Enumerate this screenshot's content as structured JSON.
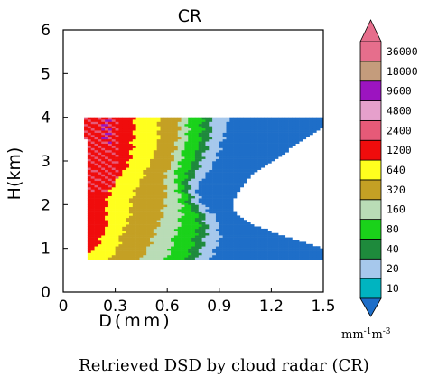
{
  "chart_data": {
    "type": "heatmap",
    "title": "CR",
    "xlabel": "D(mm)",
    "ylabel": "H(km)",
    "xlim": [
      0,
      1.5
    ],
    "ylim": [
      0,
      6
    ],
    "xticks": [
      "0",
      "0.3",
      "0.6",
      "0.9",
      "1.2",
      "1.5"
    ],
    "yticks": [
      "0",
      "1",
      "2",
      "3",
      "4",
      "5",
      "6"
    ],
    "colorbar": {
      "levels": [
        "10",
        "20",
        "40",
        "80",
        "160",
        "320",
        "640",
        "1200",
        "2400",
        "4800",
        "9600",
        "18000",
        "36000"
      ],
      "colors": [
        "#00b4c0",
        "#a6c8ec",
        "#1e8a3c",
        "#1ad21a",
        "#b9dcb6",
        "#c4a024",
        "#ffff1e",
        "#f00c0c",
        "#e65a78",
        "#e6a0cc",
        "#9c14c0",
        "#c49c7c",
        "#e66e8c"
      ],
      "unit_base": "mm",
      "unit_exp1": "-1",
      "unit_mid": "m",
      "unit_exp2": "-3"
    },
    "profile": {
      "h": [
        0.75,
        1.0,
        1.25,
        1.5,
        1.75,
        2.0,
        2.25,
        2.5,
        2.75,
        3.0,
        3.25,
        3.5,
        3.75,
        4.0
      ],
      "d_min": [
        0.15,
        0.15,
        0.15,
        0.15,
        0.15,
        0.14,
        0.14,
        0.14,
        0.14,
        0.14,
        0.14,
        0.13,
        0.13,
        0.13
      ],
      "d_max": [
        1.5,
        1.5,
        1.3,
        1.12,
        1.0,
        0.98,
        1.0,
        1.05,
        1.1,
        1.22,
        1.3,
        1.38,
        1.5,
        1.5
      ],
      "bins": {
        "red": [
          0.0,
          0.2,
          0.22,
          0.25,
          0.25,
          0.25,
          0.27,
          0.3,
          0.34,
          0.38,
          0.4,
          0.4,
          0.42,
          0.4
        ],
        "yellow": [
          0.27,
          0.31,
          0.33,
          0.36,
          0.38,
          0.39,
          0.41,
          0.44,
          0.47,
          0.51,
          0.53,
          0.55,
          0.55,
          0.55
        ],
        "tan": [
          0.45,
          0.49,
          0.51,
          0.54,
          0.57,
          0.58,
          0.6,
          0.58,
          0.6,
          0.63,
          0.64,
          0.66,
          0.67,
          0.67
        ],
        "pale": [
          0.59,
          0.62,
          0.64,
          0.67,
          0.68,
          0.68,
          0.66,
          0.65,
          0.65,
          0.68,
          0.69,
          0.71,
          0.72,
          0.72
        ],
        "lgreen": [
          0.7,
          0.74,
          0.76,
          0.78,
          0.77,
          0.73,
          0.7,
          0.69,
          0.72,
          0.75,
          0.77,
          0.79,
          0.8,
          0.8
        ],
        "dgreen": [
          0.76,
          0.8,
          0.82,
          0.83,
          0.81,
          0.77,
          0.73,
          0.73,
          0.77,
          0.8,
          0.82,
          0.84,
          0.85,
          0.85
        ],
        "lblue": [
          0.84,
          0.88,
          0.9,
          0.9,
          0.87,
          0.81,
          0.77,
          0.78,
          0.83,
          0.88,
          0.9,
          0.92,
          0.94,
          0.95
        ]
      }
    }
  },
  "caption": "Retrieved DSD by cloud radar (CR)"
}
